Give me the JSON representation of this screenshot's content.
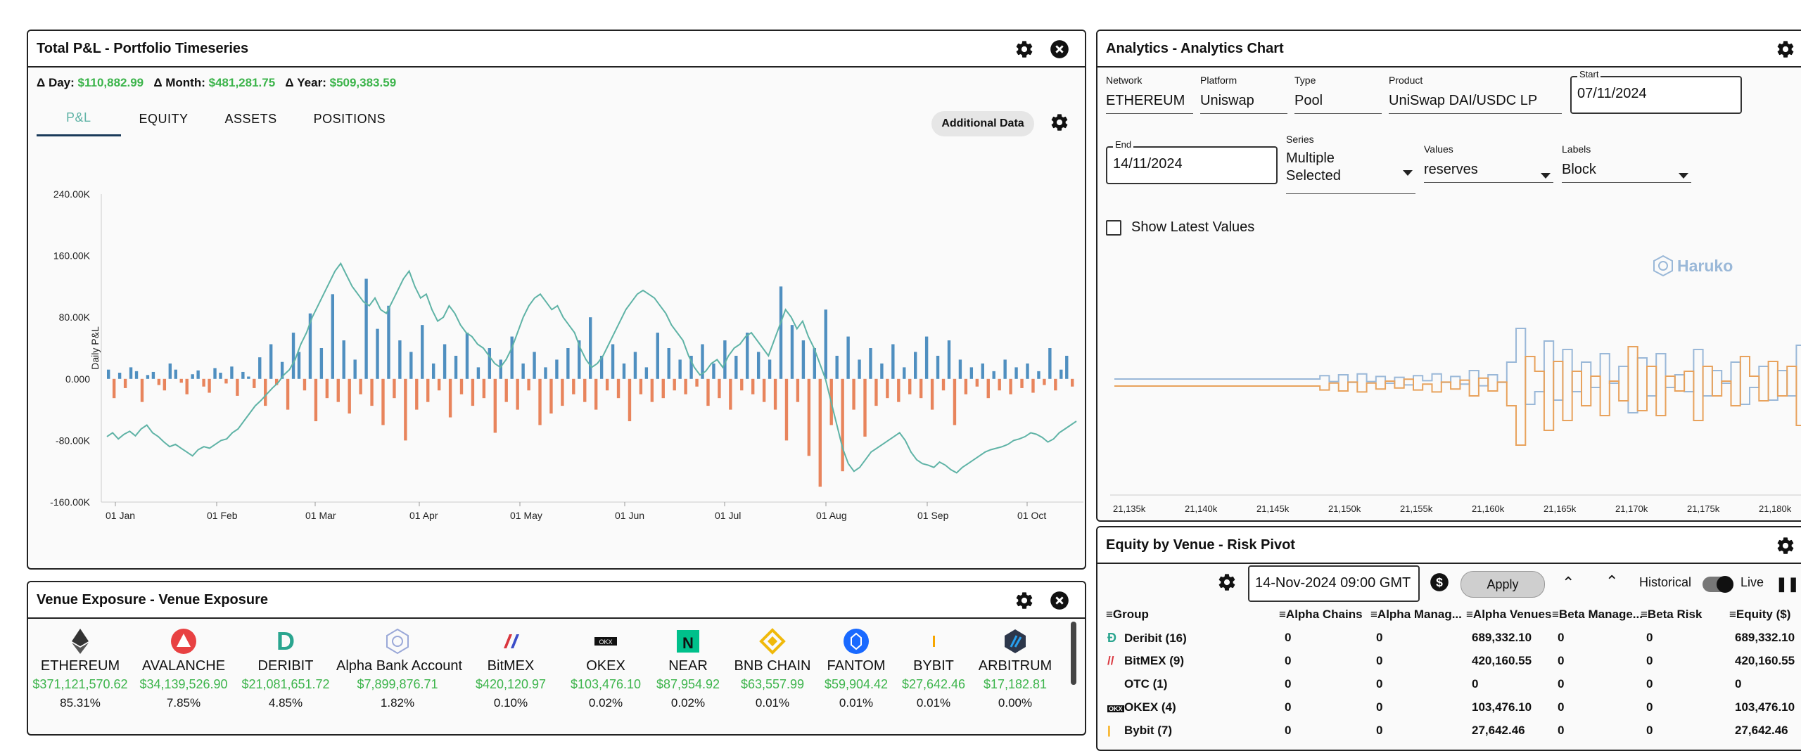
{
  "pnl_panel": {
    "title": "Total P&L - Portfolio Timeseries",
    "deltas": [
      {
        "label": "Δ Day:",
        "value": "$110,882.99"
      },
      {
        "label": "Δ Month:",
        "value": "$481,281.75"
      },
      {
        "label": "Δ Year:",
        "value": "$509,383.59"
      }
    ],
    "tabs": [
      "P&L",
      "EQUITY",
      "ASSETS",
      "POSITIONS"
    ],
    "active_tab": "P&L",
    "additional_button": "Additional Data",
    "icons": {
      "settings": "gear-icon",
      "close": "close-icon"
    }
  },
  "chart_data": [
    {
      "type": "bar",
      "title": "",
      "ylabel": "Daily P&L",
      "xlabel": "",
      "ylim": [
        -160000,
        240000
      ],
      "yticks": [
        "240.00K",
        "160.00K",
        "80.00K",
        "0.000",
        "-80.00K",
        "-160.00K"
      ],
      "xticks": [
        "01 Jan",
        "01 Feb",
        "01 Mar",
        "01 Apr",
        "01 May",
        "01 Jun",
        "01 Jul",
        "01 Aug",
        "01 Sep",
        "01 Oct"
      ],
      "positive_color": "#4f8fc0",
      "negative_color": "#e8845c",
      "line_color": "#5fb3a6",
      "grid": false,
      "series": [
        {
          "values": [
            12000,
            -25000,
            8000,
            -12000,
            15000,
            10000,
            -30000,
            5000,
            9000,
            -8000,
            -15000,
            20000,
            12000,
            -5000,
            -20000,
            6000,
            11000,
            -10000,
            -18000,
            14000,
            8000,
            -6000,
            16000,
            -22000,
            9000,
            3000,
            -12000,
            28000,
            -35000,
            45000,
            -8000,
            22000,
            -40000,
            60000,
            35000,
            -15000,
            85000,
            -55000,
            40000,
            -25000,
            110000,
            -30000,
            50000,
            -45000,
            25000,
            -20000,
            130000,
            -35000,
            65000,
            -60000,
            95000,
            -25000,
            50000,
            -80000,
            35000,
            -40000,
            70000,
            -30000,
            20000,
            -15000,
            45000,
            -50000,
            30000,
            -20000,
            60000,
            -35000,
            15000,
            -25000,
            40000,
            -70000,
            25000,
            -30000,
            55000,
            -40000,
            20000,
            -15000,
            35000,
            -60000,
            15000,
            -45000,
            25000,
            -35000,
            40000,
            -20000,
            50000,
            -30000,
            80000,
            -40000,
            30000,
            -15000,
            45000,
            -25000,
            20000,
            -55000,
            35000,
            -20000,
            15000,
            -30000,
            60000,
            -25000,
            40000,
            -15000,
            25000,
            -20000,
            30000,
            -10000,
            45000,
            -35000,
            20000,
            -25000,
            50000,
            -40000,
            30000,
            -15000,
            60000,
            -20000,
            35000,
            -30000,
            25000,
            -40000,
            120000,
            -80000,
            70000,
            -30000,
            50000,
            -100000,
            40000,
            -140000,
            90000,
            -60000,
            30000,
            -120000,
            55000,
            -40000,
            25000,
            -75000,
            40000,
            -35000,
            20000,
            -25000,
            45000,
            -30000,
            15000,
            -20000,
            35000,
            -25000,
            55000,
            -40000,
            30000,
            -15000,
            50000,
            -60000,
            25000,
            -20000,
            15000,
            -10000,
            20000,
            -25000,
            10000,
            -15000,
            25000,
            -20000,
            15000,
            -12000,
            20000,
            -18000,
            10000,
            -8000,
            40000,
            -15000,
            12000,
            30000,
            -10000
          ]
        },
        {
          "name": "",
          "values": [
            -75000,
            -70000,
            -78000,
            -72000,
            -68000,
            -74000,
            -65000,
            -60000,
            -70000,
            -75000,
            -82000,
            -88000,
            -85000,
            -90000,
            -95000,
            -100000,
            -92000,
            -88000,
            -90000,
            -85000,
            -80000,
            -78000,
            -70000,
            -65000,
            -55000,
            -45000,
            -35000,
            -28000,
            -20000,
            -12000,
            -5000,
            5000,
            12000,
            25000,
            45000,
            60000,
            80000,
            95000,
            110000,
            125000,
            140000,
            150000,
            135000,
            120000,
            110000,
            100000,
            95000,
            105000,
            90000,
            85000,
            100000,
            115000,
            130000,
            140000,
            120000,
            105000,
            110000,
            90000,
            75000,
            80000,
            95000,
            85000,
            70000,
            60000,
            55000,
            45000,
            40000,
            30000,
            20000,
            15000,
            25000,
            40000,
            60000,
            80000,
            95000,
            105000,
            110000,
            100000,
            90000,
            95000,
            80000,
            70000,
            60000,
            40000,
            25000,
            15000,
            20000,
            30000,
            45000,
            60000,
            75000,
            90000,
            100000,
            110000,
            115000,
            110000,
            105000,
            95000,
            85000,
            70000,
            60000,
            50000,
            30000,
            15000,
            5000,
            10000,
            20000,
            25000,
            15000,
            30000,
            40000,
            45000,
            55000,
            60000,
            50000,
            40000,
            30000,
            50000,
            70000,
            90000,
            80000,
            65000,
            75000,
            55000,
            40000,
            20000,
            0,
            -30000,
            -60000,
            -90000,
            -110000,
            -120000,
            -115000,
            -105000,
            -95000,
            -90000,
            -85000,
            -80000,
            -75000,
            -70000,
            -80000,
            -95000,
            -105000,
            -110000,
            -112000,
            -115000,
            -108000,
            -112000,
            -118000,
            -122000,
            -115000,
            -110000,
            -105000,
            -100000,
            -95000,
            -92000,
            -90000,
            -88000,
            -85000,
            -80000,
            -78000,
            -75000,
            -70000,
            -72000,
            -76000,
            -82000,
            -78000,
            -70000,
            -65000,
            -60000,
            -55000
          ]
        }
      ]
    },
    {
      "type": "line",
      "title": "",
      "xlabel": "",
      "ylabel": "",
      "xticks": [
        "21,135k",
        "21,140k",
        "21,145k",
        "21,150k",
        "21,155k",
        "21,160k",
        "21,165k",
        "21,170k",
        "21,175k",
        "21,180k"
      ],
      "series_colors": [
        "#9ab8d8",
        "#e8a25c"
      ],
      "watermark": "Haruko"
    }
  ],
  "analytics_panel": {
    "title": "Analytics - Analytics Chart",
    "fields": [
      {
        "label": "Network",
        "value": "ETHEREUM"
      },
      {
        "label": "Platform",
        "value": "Uniswap"
      },
      {
        "label": "Type",
        "value": "Pool"
      },
      {
        "label": "Product",
        "value": "UniSwap DAI/USDC LP"
      }
    ],
    "start": {
      "label": "Start",
      "value": "07/11/2024"
    },
    "end": {
      "label": "End",
      "value": "14/11/2024"
    },
    "series": {
      "label": "Series",
      "value_line1": "Multiple",
      "value_line2": "Selected"
    },
    "values": {
      "label": "Values",
      "value": "reserves"
    },
    "labels": {
      "label": "Labels",
      "value": "Block"
    },
    "show_latest": "Show Latest Values",
    "watermark": "Haruko"
  },
  "venue_panel": {
    "title": "Venue Exposure - Venue Exposure",
    "venues": [
      {
        "name": "ETHEREUM",
        "value": "$371,121,570.62",
        "pct": "85.31%",
        "icon": "ethereum-icon",
        "color": "#333333"
      },
      {
        "name": "AVALANCHE",
        "value": "$34,139,526.90",
        "pct": "7.85%",
        "icon": "avalanche-icon",
        "color": "#e84142"
      },
      {
        "name": "DERIBIT",
        "value": "$21,081,651.72",
        "pct": "4.85%",
        "icon": "deribit-icon",
        "color": "#2aa58f"
      },
      {
        "name": "Alpha Bank Account",
        "value": "$7,899,876.71",
        "pct": "1.82%",
        "icon": "alpha-bank-icon",
        "color": "#9aa8d8"
      },
      {
        "name": "BitMEX",
        "value": "$420,120.97",
        "pct": "0.10%",
        "icon": "bitmex-icon",
        "color": "#d9363e"
      },
      {
        "name": "OKEX",
        "value": "$103,476.10",
        "pct": "0.02%",
        "icon": "okex-icon",
        "color": "#111111"
      },
      {
        "name": "NEAR",
        "value": "$87,954.92",
        "pct": "0.02%",
        "icon": "near-icon",
        "color": "#00c08b"
      },
      {
        "name": "BNB CHAIN",
        "value": "$63,557.99",
        "pct": "0.01%",
        "icon": "bnb-icon",
        "color": "#f0b90b"
      },
      {
        "name": "FANTOM",
        "value": "$59,904.42",
        "pct": "0.01%",
        "icon": "fantom-icon",
        "color": "#1969ff"
      },
      {
        "name": "BYBIT",
        "value": "$27,642.46",
        "pct": "0.01%",
        "icon": "bybit-icon",
        "color": "#f7a600"
      },
      {
        "name": "ARBITRUM",
        "value": "$17,182.81",
        "pct": "0.00%",
        "icon": "arbitrum-icon",
        "color": "#2d374b"
      }
    ]
  },
  "equity_panel": {
    "title": "Equity by Venue - Risk Pivot",
    "datetime": "14-Nov-2024 09:00 GMT",
    "apply": "Apply",
    "historical": "Historical",
    "live": "Live",
    "columns": [
      "Group",
      "Alpha Chains",
      "Alpha Manag...",
      "Alpha Venues",
      "Beta Manage...",
      "Beta Risk",
      "Equity ($)"
    ],
    "rows": [
      {
        "group": "Deribit (16)",
        "icon": "deribit-icon",
        "vals": [
          "0",
          "0",
          "689,332.10",
          "0",
          "0",
          "689,332.10"
        ]
      },
      {
        "group": "BitMEX (9)",
        "icon": "bitmex-icon",
        "vals": [
          "0",
          "0",
          "420,160.55",
          "0",
          "0",
          "420,160.55"
        ]
      },
      {
        "group": "OTC (1)",
        "icon": "",
        "vals": [
          "0",
          "0",
          "0",
          "0",
          "0",
          "0"
        ]
      },
      {
        "group": "OKEX (4)",
        "icon": "okex-icon",
        "vals": [
          "0",
          "0",
          "103,476.10",
          "0",
          "0",
          "103,476.10"
        ]
      },
      {
        "group": "Bybit (7)",
        "icon": "bybit-icon",
        "vals": [
          "0",
          "0",
          "27,642.46",
          "0",
          "0",
          "27,642.46"
        ]
      }
    ]
  }
}
